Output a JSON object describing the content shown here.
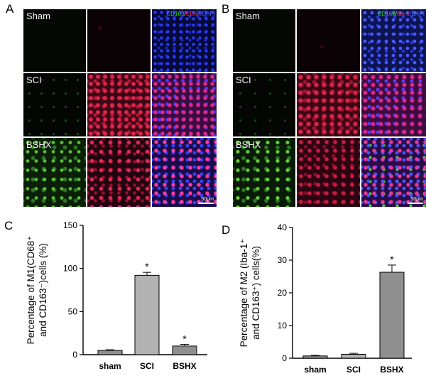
{
  "figure": {
    "panelA": {
      "letter": "A",
      "rows": [
        "Sham",
        "SCI",
        "BSHX"
      ],
      "channels": [
        {
          "text": "CD163",
          "color": "#27d327"
        },
        {
          "text": "/",
          "color": "#e8e8e8"
        },
        {
          "text": "CD68",
          "color": "#ff3030"
        },
        {
          "text": "/DAPI",
          "color": "#4f6bff"
        }
      ],
      "scale_label": "50μm"
    },
    "panelB": {
      "letter": "B",
      "rows": [
        "Sham",
        "SCI",
        "BSHX"
      ],
      "channels": [
        {
          "text": "CD163",
          "color": "#27d327"
        },
        {
          "text": "/",
          "color": "#e8e8e8"
        },
        {
          "text": "Iba-1",
          "color": "#ff3030"
        },
        {
          "text": "/DAPI",
          "color": "#4f6bff"
        }
      ],
      "scale_label": "50μm"
    }
  },
  "chart_data": [
    {
      "letter": "C",
      "type": "bar",
      "categories": [
        "sham",
        "SCI",
        "BSHX"
      ],
      "values": [
        5,
        92,
        10
      ],
      "errors": [
        0.7,
        3.5,
        2
      ],
      "significance": [
        "",
        "*",
        "*"
      ],
      "ylim": [
        0,
        150
      ],
      "yticks": [
        "0",
        "50",
        "100",
        "150"
      ],
      "ylabel_lines": [
        "Percentage of M1(CD68⁺",
        "and CD163⁻)cells (%)"
      ],
      "xlabel": "",
      "bar_colors": [
        "#8f8f8f",
        "#b2b2b2",
        "#8f8f8f"
      ]
    },
    {
      "letter": "D",
      "type": "bar",
      "categories": [
        "sham",
        "SCI",
        "BSHX"
      ],
      "values": [
        0.7,
        1.2,
        26.3
      ],
      "errors": [
        0.2,
        0.3,
        2.2
      ],
      "significance": [
        "",
        "",
        "*"
      ],
      "ylim": [
        0,
        40
      ],
      "yticks": [
        "0",
        "10",
        "20",
        "30",
        "40"
      ],
      "ylabel_lines": [
        "Percentage of M2 (Iba-1⁺",
        "and CD163⁺) cells(%)"
      ],
      "xlabel": "",
      "bar_colors": [
        "#8f8f8f",
        "#b2b2b2",
        "#8f8f8f"
      ]
    }
  ]
}
